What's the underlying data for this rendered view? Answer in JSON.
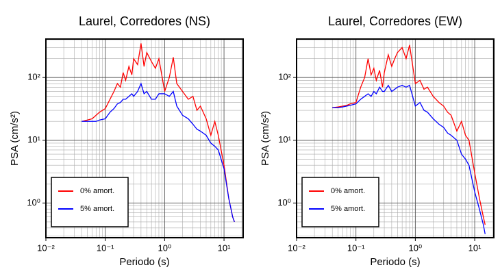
{
  "chart_data": [
    {
      "type": "line",
      "title": "Laurel, Corredores (NS)",
      "xlabel": "Periodo (s)",
      "ylabel": "PSA (cm/s²)",
      "xscale": "log",
      "yscale": "log",
      "grid": true,
      "legend": "lower left",
      "xlim": [
        0.01,
        21
      ],
      "ylim": [
        0.28,
        410
      ],
      "xticks": [
        {
          "value": 0.01,
          "label": "10⁻²"
        },
        {
          "value": 0.1,
          "label": "10⁻¹"
        },
        {
          "value": 1,
          "label": "10⁰"
        },
        {
          "value": 10,
          "label": "10¹"
        }
      ],
      "yticks": [
        {
          "value": 1,
          "label": "10⁰"
        },
        {
          "value": 10,
          "label": "10¹"
        },
        {
          "value": 100,
          "label": "10²"
        }
      ],
      "x": [
        0.04,
        0.05,
        0.06,
        0.07,
        0.08,
        0.1,
        0.12,
        0.14,
        0.16,
        0.18,
        0.2,
        0.22,
        0.25,
        0.28,
        0.3,
        0.35,
        0.4,
        0.45,
        0.5,
        0.6,
        0.7,
        0.8,
        1.0,
        1.2,
        1.4,
        1.6,
        2,
        2.5,
        3,
        3.5,
        4,
        5,
        6,
        7,
        8,
        10,
        12,
        14,
        15
      ],
      "series": [
        {
          "name": "0% amort.",
          "color": "#ff0000",
          "values": [
            20,
            21,
            22,
            25,
            28,
            32,
            45,
            60,
            80,
            70,
            120,
            90,
            150,
            110,
            200,
            160,
            350,
            150,
            250,
            180,
            140,
            200,
            60,
            100,
            210,
            80,
            60,
            45,
            50,
            30,
            35,
            22,
            12,
            20,
            12,
            4,
            1.2,
            0.6,
            0.5
          ]
        },
        {
          "name": "5% amort.",
          "color": "#0000ff",
          "values": [
            20,
            20,
            20,
            20,
            21,
            22,
            28,
            32,
            38,
            40,
            45,
            45,
            50,
            55,
            50,
            60,
            80,
            55,
            60,
            45,
            45,
            55,
            55,
            50,
            60,
            35,
            25,
            22,
            18,
            15,
            14,
            12,
            9,
            8,
            7,
            3.5,
            1.2,
            0.6,
            0.5
          ]
        }
      ]
    },
    {
      "type": "line",
      "title": "Laurel, Corredores (EW)",
      "xlabel": "Periodo (s)",
      "ylabel": "PSA (cm/s²)",
      "xscale": "log",
      "yscale": "log",
      "grid": true,
      "legend": "lower left",
      "xlim": [
        0.01,
        21
      ],
      "ylim": [
        0.28,
        410
      ],
      "xticks": [
        {
          "value": 0.01,
          "label": "10⁻²"
        },
        {
          "value": 0.1,
          "label": "10⁻¹"
        },
        {
          "value": 1,
          "label": "10⁰"
        },
        {
          "value": 10,
          "label": "10¹"
        }
      ],
      "yticks": [
        {
          "value": 1,
          "label": "10⁰"
        },
        {
          "value": 10,
          "label": "10¹"
        },
        {
          "value": 100,
          "label": "10²"
        }
      ],
      "x": [
        0.04,
        0.05,
        0.06,
        0.07,
        0.08,
        0.1,
        0.12,
        0.14,
        0.16,
        0.18,
        0.2,
        0.22,
        0.25,
        0.28,
        0.3,
        0.35,
        0.4,
        0.45,
        0.5,
        0.6,
        0.7,
        0.8,
        1.0,
        1.2,
        1.4,
        1.6,
        2,
        2.5,
        3,
        3.5,
        4,
        5,
        6,
        7,
        8,
        10,
        12,
        14,
        15
      ],
      "series": [
        {
          "name": "0% amort.",
          "color": "#ff0000",
          "values": [
            33,
            34,
            35,
            36,
            38,
            40,
            70,
            100,
            200,
            110,
            140,
            90,
            130,
            70,
            120,
            230,
            150,
            200,
            250,
            300,
            200,
            330,
            80,
            90,
            65,
            70,
            50,
            40,
            35,
            28,
            25,
            14,
            20,
            12,
            10,
            3,
            1.2,
            0.6,
            0.45
          ]
        },
        {
          "name": "5% amort.",
          "color": "#0000ff",
          "values": [
            33,
            33,
            34,
            35,
            36,
            38,
            45,
            50,
            55,
            50,
            60,
            55,
            70,
            60,
            60,
            75,
            60,
            65,
            70,
            75,
            70,
            75,
            35,
            40,
            30,
            28,
            22,
            18,
            16,
            13,
            12,
            10,
            6,
            5,
            4,
            1.5,
            0.8,
            0.45,
            0.32
          ]
        }
      ]
    }
  ]
}
